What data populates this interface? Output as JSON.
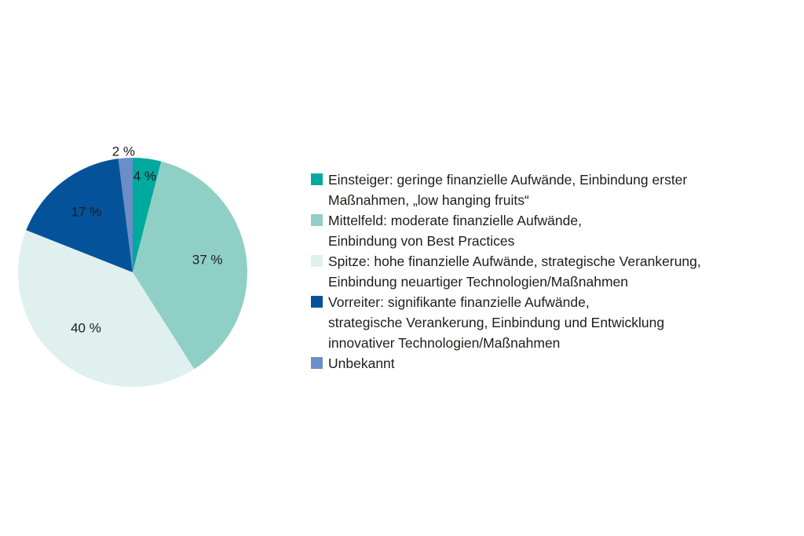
{
  "chart_data": {
    "type": "pie",
    "title": "",
    "slices": [
      {
        "label": "4 %",
        "value": 4,
        "color": "#00a99d",
        "legend": [
          "Einsteiger: geringe finanzielle Aufwände, Einbindung erster",
          "Maßnahmen, „low hanging fruits“"
        ]
      },
      {
        "label": "37 %",
        "value": 37,
        "color": "#8fcfc5",
        "legend": [
          "Mittelfeld: moderate finanzielle Aufwände,",
          "Einbindung von Best Practices"
        ]
      },
      {
        "label": "40 %",
        "value": 40,
        "color": "#dff0ee",
        "legend": [
          "Spitze: hohe finanzielle Aufwände, strategische Verankerung,",
          "Einbindung neuartiger Technologien/Maßnahmen"
        ]
      },
      {
        "label": "17 %",
        "value": 17,
        "color": "#04539a",
        "legend": [
          "Vorreiter: signifikante finanzielle Aufwände,",
          "strategische Verankerung, Einbindung und Entwicklung",
          "innovativer Technologien/Maßnahmen"
        ]
      },
      {
        "label": "2 %",
        "value": 2,
        "color": "#6b8ec8",
        "legend": [
          "Unbekannt"
        ]
      }
    ],
    "legend_position": "right"
  }
}
